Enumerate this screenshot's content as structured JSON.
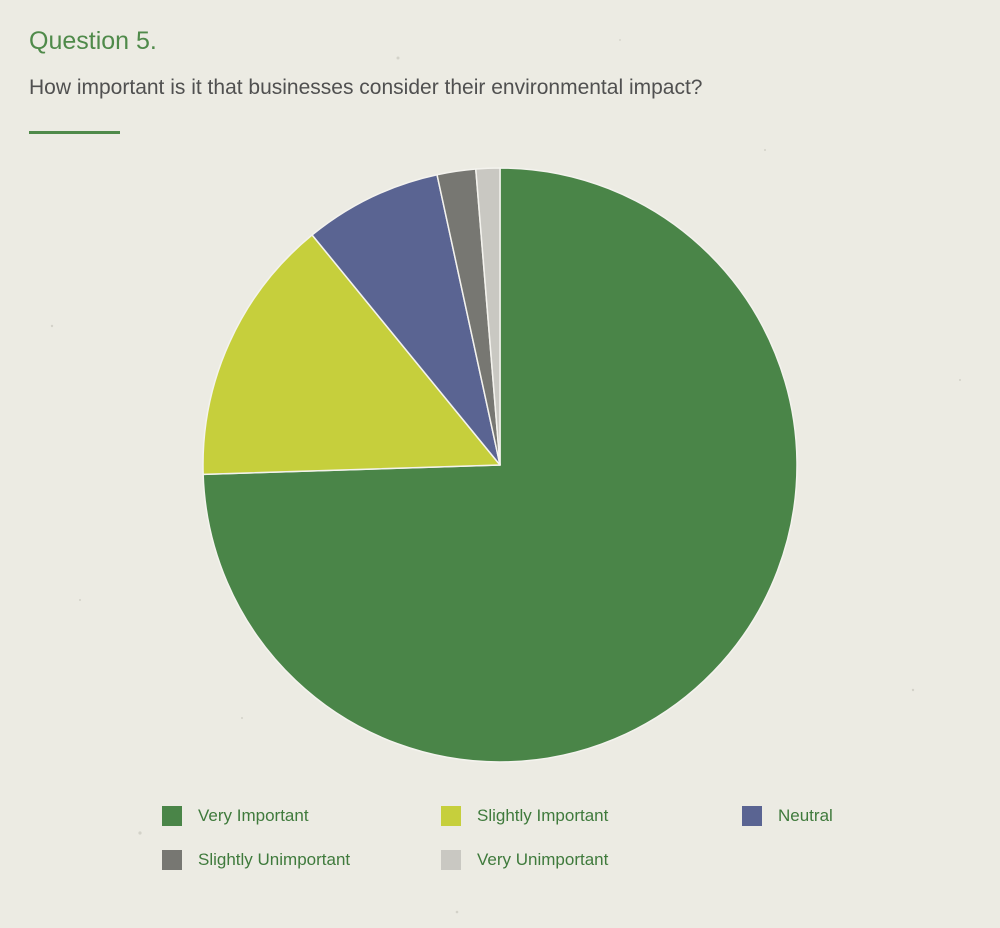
{
  "header": {
    "question_number": "Question 5.",
    "question_text": "How important is it that businesses consider their environmental impact?"
  },
  "colors": {
    "accent_green": "#4f8a4a",
    "background": "#ecebe3"
  },
  "chart_data": {
    "type": "pie",
    "title": "",
    "start_angle_deg": 90,
    "direction": "clockwise",
    "slices": [
      {
        "label": "Very Important",
        "value": 74.5,
        "color": "#4a8548"
      },
      {
        "label": "Slightly Important",
        "value": 14.6,
        "color": "#c6cf3c"
      },
      {
        "label": "Neutral",
        "value": 7.5,
        "color": "#5a6492"
      },
      {
        "label": "Slightly Unimportant",
        "value": 2.1,
        "color": "#777772"
      },
      {
        "label": "Very Unimportant",
        "value": 1.3,
        "color": "#c9c8c2"
      }
    ],
    "legend": {
      "placement": "bottom",
      "items": [
        {
          "label": "Very Important",
          "color": "#4a8548"
        },
        {
          "label": "Slightly Important",
          "color": "#c6cf3c"
        },
        {
          "label": "Neutral",
          "color": "#5a6492"
        },
        {
          "label": "Slightly Unimportant",
          "color": "#777772"
        },
        {
          "label": "Very Unimportant",
          "color": "#c9c8c2"
        }
      ]
    }
  }
}
